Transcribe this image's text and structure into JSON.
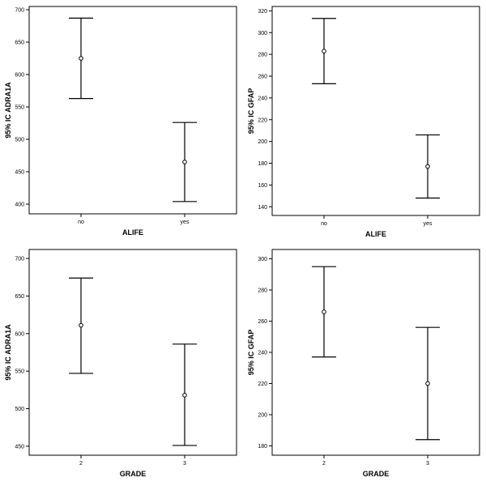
{
  "chart_data": [
    {
      "type": "errorbar",
      "xlabel": "ALIFE",
      "ylabel": "95% IC ADRA1A",
      "categories": [
        "no",
        "yes"
      ],
      "mean": [
        625,
        465
      ],
      "lower": [
        563,
        404
      ],
      "upper": [
        687,
        526
      ],
      "ylim": [
        385,
        705
      ],
      "yticks": [
        400,
        450,
        500,
        550,
        600,
        650,
        700
      ],
      "grid": false
    },
    {
      "type": "errorbar",
      "xlabel": "ALIFE",
      "ylabel": "95% IC GFAP",
      "categories": [
        "no",
        "yes"
      ],
      "mean": [
        283,
        177
      ],
      "lower": [
        253,
        148
      ],
      "upper": [
        313,
        206
      ],
      "ylim": [
        132,
        324
      ],
      "yticks": [
        140,
        160,
        180,
        200,
        220,
        240,
        260,
        280,
        300,
        320
      ],
      "grid": false
    },
    {
      "type": "errorbar",
      "xlabel": "GRADE",
      "ylabel": "95% IC ADRA1A",
      "categories": [
        "2",
        "3"
      ],
      "mean": [
        611,
        518
      ],
      "lower": [
        547,
        451
      ],
      "upper": [
        674,
        586
      ],
      "ylim": [
        438,
        712
      ],
      "yticks": [
        450,
        500,
        550,
        600,
        650,
        700
      ],
      "grid": false
    },
    {
      "type": "errorbar",
      "xlabel": "GRADE",
      "ylabel": "95% IC GFAP",
      "categories": [
        "2",
        "3"
      ],
      "mean": [
        266,
        220
      ],
      "lower": [
        237,
        184
      ],
      "upper": [
        295,
        256
      ],
      "ylim": [
        174,
        306
      ],
      "yticks": [
        180,
        200,
        220,
        240,
        260,
        280,
        300
      ],
      "grid": false
    }
  ]
}
